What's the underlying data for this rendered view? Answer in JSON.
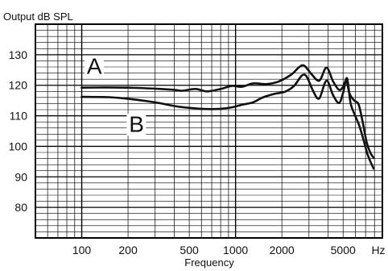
{
  "chart_data": {
    "type": "line",
    "title": "",
    "ylabel": "Output dB SPL",
    "xlabel": "Frequency",
    "x_unit": "Hz",
    "x_scale": "log",
    "xlim": [
      50,
      9000
    ],
    "ylim": [
      70,
      140
    ],
    "grid": true,
    "x_ticks": [
      {
        "value": 100,
        "label": "100"
      },
      {
        "value": 200,
        "label": "200"
      },
      {
        "value": 500,
        "label": "500"
      },
      {
        "value": 1000,
        "label": "1000"
      },
      {
        "value": 2000,
        "label": "2000"
      },
      {
        "value": 5000,
        "label": "5000"
      }
    ],
    "y_ticks": [
      {
        "value": 80,
        "label": "80"
      },
      {
        "value": 90,
        "label": "90"
      },
      {
        "value": 100,
        "label": "100"
      },
      {
        "value": 110,
        "label": "110"
      },
      {
        "value": 120,
        "label": "120"
      },
      {
        "value": 130,
        "label": "130"
      }
    ],
    "series": [
      {
        "name": "A",
        "points": [
          [
            100,
            119.2
          ],
          [
            150,
            119.3
          ],
          [
            200,
            119.2
          ],
          [
            300,
            118.9
          ],
          [
            400,
            118.5
          ],
          [
            450,
            118.2
          ],
          [
            550,
            118.8
          ],
          [
            650,
            118.0
          ],
          [
            800,
            118.8
          ],
          [
            950,
            119.8
          ],
          [
            1100,
            119.5
          ],
          [
            1300,
            120.6
          ],
          [
            1600,
            120.4
          ],
          [
            1900,
            121.2
          ],
          [
            2300,
            123.5
          ],
          [
            2600,
            126.0
          ],
          [
            2800,
            126.4
          ],
          [
            3100,
            123.8
          ],
          [
            3500,
            121.5
          ],
          [
            3900,
            125.8
          ],
          [
            4300,
            121.3
          ],
          [
            4700,
            118.5
          ],
          [
            5000,
            119.5
          ],
          [
            5250,
            121.6
          ],
          [
            5500,
            117.3
          ],
          [
            5900,
            115.0
          ],
          [
            6300,
            113.8
          ],
          [
            6700,
            108.0
          ],
          [
            7100,
            101.5
          ],
          [
            7500,
            98.0
          ],
          [
            7900,
            96.2
          ]
        ]
      },
      {
        "name": "B",
        "points": [
          [
            100,
            116.2
          ],
          [
            150,
            116.1
          ],
          [
            200,
            115.6
          ],
          [
            300,
            114.4
          ],
          [
            400,
            113.2
          ],
          [
            500,
            112.6
          ],
          [
            650,
            112.2
          ],
          [
            800,
            112.3
          ],
          [
            950,
            112.8
          ],
          [
            1100,
            113.6
          ],
          [
            1300,
            114.4
          ],
          [
            1500,
            116.0
          ],
          [
            1800,
            117.2
          ],
          [
            2100,
            117.9
          ],
          [
            2400,
            119.8
          ],
          [
            2700,
            123.2
          ],
          [
            2900,
            122.8
          ],
          [
            3200,
            118.0
          ],
          [
            3500,
            115.7
          ],
          [
            3900,
            121.5
          ],
          [
            4300,
            116.8
          ],
          [
            4700,
            114.2
          ],
          [
            5000,
            117.5
          ],
          [
            5300,
            122.3
          ],
          [
            5600,
            114.0
          ],
          [
            6000,
            110.0
          ],
          [
            6400,
            106.5
          ],
          [
            6800,
            102.0
          ],
          [
            7200,
            97.5
          ],
          [
            7600,
            94.5
          ],
          [
            7900,
            92.7
          ]
        ]
      }
    ],
    "annotations": [
      {
        "text": "A",
        "x": 108,
        "y": 123.8,
        "series": "A"
      },
      {
        "text": "B",
        "x": 203,
        "y": 104.8,
        "series": "B"
      }
    ]
  }
}
